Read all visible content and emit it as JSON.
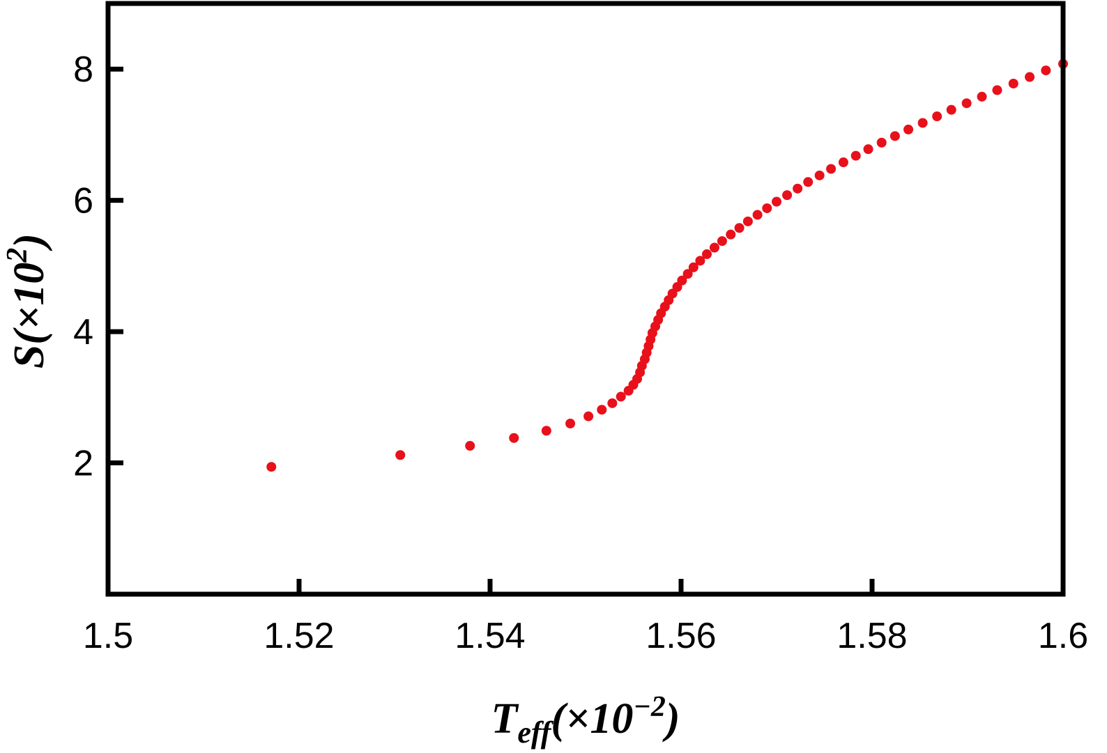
{
  "chart_data": {
    "type": "scatter",
    "title": "",
    "xlabel_parts": {
      "symbol": "T",
      "subscript": "eff",
      "prefix": "(×10",
      "exponent": "−2",
      "suffix": ")"
    },
    "ylabel_parts": {
      "symbol": "S",
      "prefix": "(×10",
      "exponent": "2",
      "suffix": ")"
    },
    "xlim": [
      1.5,
      1.6
    ],
    "ylim": [
      0,
      9
    ],
    "xticks": [
      {
        "value": 1.5,
        "label": "1.5"
      },
      {
        "value": 1.52,
        "label": "1.52"
      },
      {
        "value": 1.54,
        "label": "1.54"
      },
      {
        "value": 1.56,
        "label": "1.56"
      },
      {
        "value": 1.58,
        "label": "1.58"
      },
      {
        "value": 1.6,
        "label": "1.6"
      }
    ],
    "yticks": [
      {
        "value": 2,
        "label": "2"
      },
      {
        "value": 4,
        "label": "4"
      },
      {
        "value": 6,
        "label": "6"
      },
      {
        "value": 8,
        "label": "8"
      }
    ],
    "grid": false,
    "marker_color": "#e8101a",
    "axis_color": "#000000",
    "series": [
      {
        "points": [
          [
            1.5171,
            1.94
          ],
          [
            1.5306,
            2.12
          ],
          [
            1.5379,
            2.26
          ],
          [
            1.5425,
            2.38
          ],
          [
            1.5459,
            2.49
          ],
          [
            1.5484,
            2.6
          ],
          [
            1.5503,
            2.71
          ],
          [
            1.5517,
            2.81
          ],
          [
            1.5528,
            2.91
          ],
          [
            1.5537,
            3.01
          ],
          [
            1.5545,
            3.1
          ],
          [
            1.555,
            3.19
          ],
          [
            1.5554,
            3.28
          ],
          [
            1.5557,
            3.38
          ],
          [
            1.5559,
            3.48
          ],
          [
            1.5562,
            3.58
          ],
          [
            1.5564,
            3.68
          ],
          [
            1.5566,
            3.78
          ],
          [
            1.5568,
            3.88
          ],
          [
            1.557,
            3.98
          ],
          [
            1.5573,
            4.08
          ],
          [
            1.5576,
            4.18
          ],
          [
            1.5579,
            4.28
          ],
          [
            1.5583,
            4.38
          ],
          [
            1.5587,
            4.48
          ],
          [
            1.5591,
            4.58
          ],
          [
            1.5596,
            4.68
          ],
          [
            1.5601,
            4.78
          ],
          [
            1.5607,
            4.88
          ],
          [
            1.5613,
            4.98
          ],
          [
            1.562,
            5.08
          ],
          [
            1.5627,
            5.18
          ],
          [
            1.5635,
            5.28
          ],
          [
            1.5643,
            5.38
          ],
          [
            1.5652,
            5.48
          ],
          [
            1.5661,
            5.58
          ],
          [
            1.567,
            5.68
          ],
          [
            1.568,
            5.78
          ],
          [
            1.569,
            5.88
          ],
          [
            1.57,
            5.98
          ],
          [
            1.5711,
            6.08
          ],
          [
            1.5722,
            6.18
          ],
          [
            1.5733,
            6.28
          ],
          [
            1.5745,
            6.38
          ],
          [
            1.5757,
            6.48
          ],
          [
            1.577,
            6.58
          ],
          [
            1.5783,
            6.68
          ],
          [
            1.5796,
            6.78
          ],
          [
            1.581,
            6.88
          ],
          [
            1.5824,
            6.98
          ],
          [
            1.5838,
            7.08
          ],
          [
            1.5853,
            7.18
          ],
          [
            1.5868,
            7.28
          ],
          [
            1.5883,
            7.38
          ],
          [
            1.5899,
            7.48
          ],
          [
            1.5915,
            7.58
          ],
          [
            1.5931,
            7.68
          ],
          [
            1.5948,
            7.78
          ],
          [
            1.5965,
            7.88
          ],
          [
            1.5982,
            7.98
          ],
          [
            1.6,
            8.08
          ]
        ]
      }
    ]
  }
}
